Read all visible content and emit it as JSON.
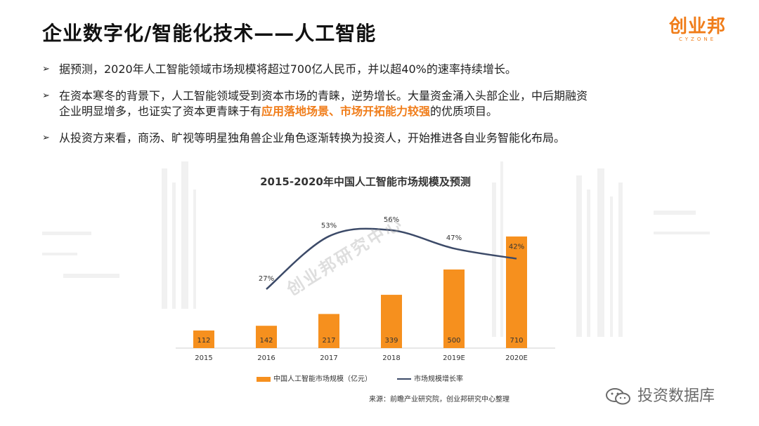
{
  "page": {
    "title": "企业数字化/智能化技术——人工智能",
    "logo": {
      "main": "创业邦",
      "sub": "CYZONE"
    },
    "bullets": [
      {
        "text": "据预测，2020年人工智能领域市场规模将超过700亿人民币，并以超40%的速率持续增长。"
      },
      {
        "line1": "在资本寒冬的背景下，人工智能领域受到资本市场的青睐，逆势增长。大量资金涌入头部企业，中后期融资",
        "line2_pre": "企业明显增多，也证实了资本更青睐于有",
        "line2_hl": "应用落地场景、市场开拓能力较强",
        "line2_post": "的优质项目。"
      },
      {
        "text": "从投资方来看，商汤、旷视等明星独角兽企业角色逐渐转换为投资人，开始推进各自业务智能化布局。"
      }
    ],
    "source": "来源：前瞻产业研究院，创业邦研究中心整理",
    "watermark_text": "投资数据库",
    "watermark_icon": "wechat-icon",
    "stamp_text": "创业邦研究中心"
  },
  "colors": {
    "accent": "#f07d1a",
    "bar": "#f6901e",
    "line": "#3c4a68"
  },
  "chart_data": {
    "type": "bar",
    "title": "2015-2020年中国人工智能市场规模及预测",
    "categories": [
      "2015",
      "2016",
      "2017",
      "2018",
      "2019E",
      "2020E"
    ],
    "series": [
      {
        "name": "中国人工智能市场规模（亿元）",
        "type": "bar",
        "values": [
          112,
          142,
          217,
          339,
          500,
          710
        ]
      },
      {
        "name": "市场规模增长率",
        "type": "line",
        "values": [
          null,
          27,
          53,
          56,
          47,
          42
        ],
        "labels": [
          "",
          "27%",
          "53%",
          "56%",
          "47%",
          "42%"
        ]
      }
    ],
    "ylim": [
      0,
      750
    ],
    "grid": false,
    "legend": "bottom"
  }
}
